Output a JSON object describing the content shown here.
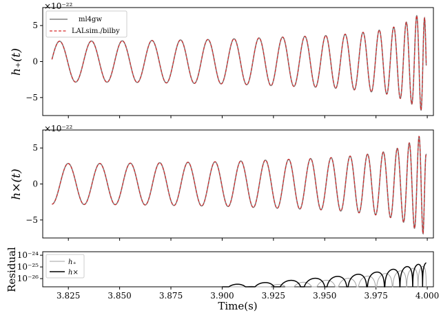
{
  "chart_data": [
    {
      "type": "line",
      "panel": "top",
      "ylabel": "h₊(t)",
      "offset_text": "×10⁻²²",
      "ylim": [
        -7.5,
        7.5
      ],
      "yticks": [
        -5,
        0,
        5
      ],
      "ytick_labels": [
        "−5",
        "0",
        "5"
      ],
      "xlim": [
        3.8125,
        4.003
      ],
      "legend_position": "top-left",
      "grid": false,
      "series": [
        {
          "name": "ml4gw",
          "color": "#808080",
          "style": "solid"
        },
        {
          "name": "LALsim./bilby",
          "color": "#d62728",
          "style": "dashed"
        }
      ],
      "x": [
        3.817,
        3.825,
        3.84,
        3.86,
        3.88,
        3.9,
        3.92,
        3.94,
        3.95,
        3.96,
        3.97,
        3.98,
        3.985,
        3.99,
        3.993,
        3.996,
        3.998,
        3.9995
      ],
      "envelope_amplitude": [
        2.8,
        2.85,
        2.85,
        2.9,
        3.0,
        3.1,
        3.3,
        3.5,
        3.6,
        3.8,
        4.1,
        4.5,
        4.9,
        5.5,
        6.0,
        6.6,
        6.9,
        5.0
      ],
      "phase_turns_from_start": 17.5,
      "start_value": 0.3
    },
    {
      "type": "line",
      "panel": "middle",
      "ylabel": "h×(t)",
      "offset_text": "×10⁻²²",
      "ylim": [
        -7.5,
        7.5
      ],
      "yticks": [
        -5,
        0,
        5
      ],
      "ytick_labels": [
        "−5",
        "0",
        "5"
      ],
      "xlim": [
        3.8125,
        4.003
      ],
      "grid": false,
      "series": [
        {
          "name": "ml4gw",
          "color": "#808080",
          "style": "solid"
        },
        {
          "name": "LALsim./bilby",
          "color": "#d62728",
          "style": "dashed"
        }
      ],
      "x": [
        3.817,
        3.825,
        3.84,
        3.86,
        3.88,
        3.9,
        3.92,
        3.94,
        3.95,
        3.96,
        3.97,
        3.98,
        3.985,
        3.99,
        3.993,
        3.996,
        3.998,
        3.9995
      ],
      "envelope_amplitude": [
        2.8,
        2.85,
        2.85,
        2.9,
        3.0,
        3.1,
        3.3,
        3.5,
        3.6,
        3.8,
        4.1,
        4.5,
        4.9,
        5.5,
        6.0,
        6.6,
        6.9,
        4.0
      ],
      "phase_turns_from_start": 17.5,
      "start_value": -2.8
    },
    {
      "type": "line",
      "panel": "bottom",
      "ylabel": "Residual",
      "xlabel": "Time(s)",
      "yscale": "log",
      "ylim_log10": [
        -26.7,
        -23.7
      ],
      "yticks_log10": [
        -26,
        -25,
        -24
      ],
      "ytick_labels": [
        "10⁻²⁶",
        "10⁻²⁵",
        "10⁻²⁴"
      ],
      "xlim": [
        3.8125,
        4.003
      ],
      "xticks": [
        3.825,
        3.85,
        3.875,
        3.9,
        3.925,
        3.95,
        3.975,
        4.0
      ],
      "xtick_labels": [
        "3.825",
        "3.850",
        "3.875",
        "3.900",
        "3.925",
        "3.950",
        "3.975",
        "4.000"
      ],
      "legend_position": "top-left",
      "series": [
        {
          "name": "h₊",
          "color": "#a0a0a0",
          "style": "solid",
          "width": 1
        },
        {
          "name": "h×",
          "color": "#000000",
          "style": "solid",
          "width": 1.6
        }
      ],
      "x": [
        3.9,
        3.92,
        3.94,
        3.96,
        3.975,
        3.985,
        3.995,
        3.9995
      ],
      "peak_log10": [
        -26.55,
        -26.35,
        -26.05,
        -25.75,
        -25.45,
        -25.15,
        -24.8,
        -24.65
      ]
    }
  ]
}
